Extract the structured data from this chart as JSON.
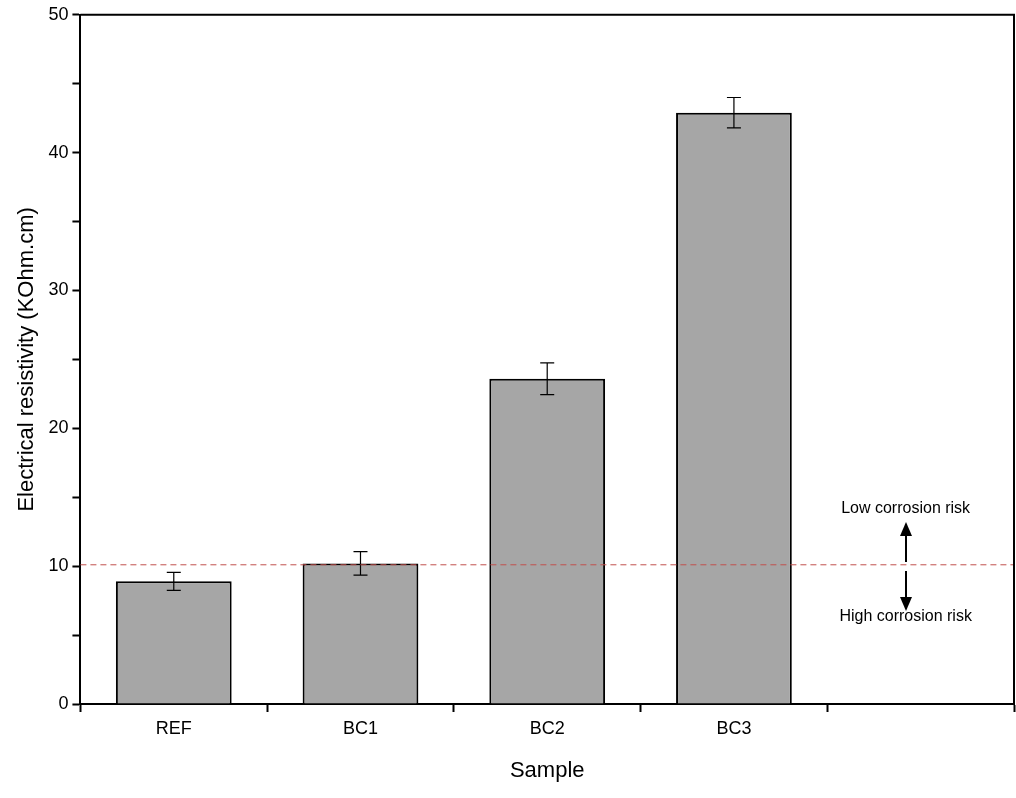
{
  "chart_data": {
    "type": "bar",
    "xlabel": "Sample",
    "ylabel": "Electrical resistivity (KOhm.cm)",
    "categories": [
      "REF",
      "BC1",
      "BC2",
      "BC3",
      null
    ],
    "values": [
      8.9,
      10.2,
      23.6,
      42.9,
      null
    ],
    "errors": [
      0.65,
      0.85,
      1.15,
      1.1,
      null
    ],
    "color": "#a6a6a6",
    "ylim": [
      0,
      50
    ],
    "yticks": [
      0,
      {
        "value": 5,
        "label": null
      },
      10,
      {
        "value": 15,
        "label": null
      },
      20,
      {
        "value": 25,
        "label": null
      },
      30,
      {
        "value": 35,
        "label": null
      },
      40,
      {
        "value": 45,
        "label": null
      },
      50
    ],
    "ref_lines": [
      {
        "axis": "y",
        "value": 10.1,
        "color": "#c0504d",
        "line_style": "dashed"
      }
    ],
    "annotations": [
      "Low corrosion risk",
      "High corrosion risk"
    ],
    "grid": false,
    "legend": false
  }
}
